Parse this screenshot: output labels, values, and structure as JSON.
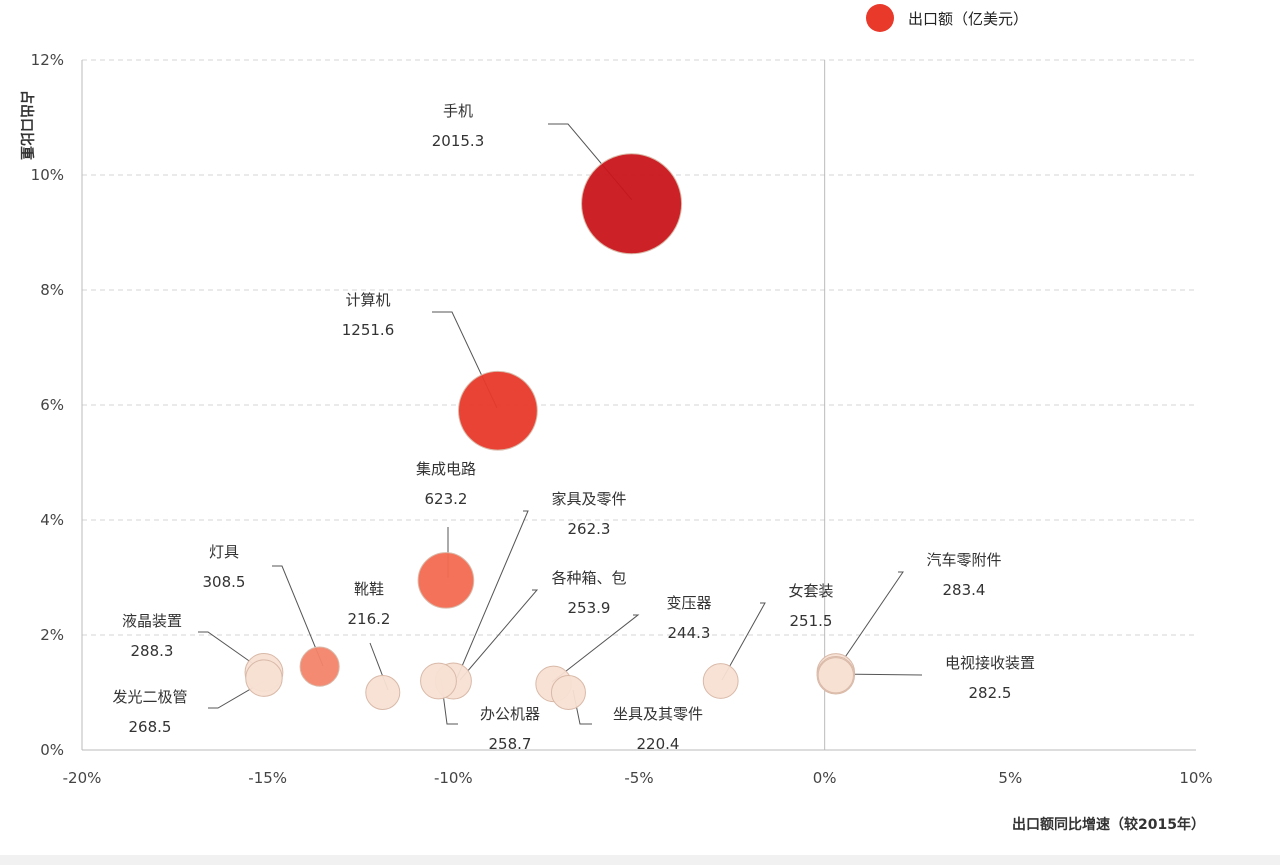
{
  "chart_data": {
    "type": "bubble",
    "legend": {
      "label": "出口额（亿美元）",
      "color": "#e8392b",
      "placement": "top-right"
    },
    "xlabel": "出口额同比增速（较2015年）",
    "ylabel": "占出口比重",
    "xlim": [
      -20,
      10
    ],
    "ylim": [
      0,
      12
    ],
    "xticks": [
      "-20%",
      "-15%",
      "-10%",
      "-5%",
      "0%",
      "5%",
      "10%"
    ],
    "yticks": [
      "0%",
      "2%",
      "4%",
      "6%",
      "8%",
      "10%",
      "12%"
    ],
    "points": [
      {
        "name": "手机",
        "value": "2015.3",
        "size": 2015.3,
        "x": -5.2,
        "y": 9.5,
        "color": "#c9161b"
      },
      {
        "name": "计算机",
        "value": "1251.6",
        "size": 1251.6,
        "x": -8.8,
        "y": 5.9,
        "color": "#e8392b"
      },
      {
        "name": "集成电路",
        "value": "623.2",
        "size": 623.2,
        "x": -10.2,
        "y": 2.95,
        "color": "#f36a50"
      },
      {
        "name": "灯具",
        "value": "308.5",
        "size": 308.5,
        "x": -13.6,
        "y": 1.45,
        "color": "#f4846a"
      },
      {
        "name": "液晶装置",
        "value": "288.3",
        "size": 288.3,
        "x": -15.1,
        "y": 1.35,
        "color": "#f7e0d3"
      },
      {
        "name": "发光二极管",
        "value": "268.5",
        "size": 268.5,
        "x": -15.1,
        "y": 1.25,
        "color": "#f7e0d3"
      },
      {
        "name": "靴鞋",
        "value": "216.2",
        "size": 216.2,
        "x": -11.9,
        "y": 1.0,
        "color": "#f7e0d3"
      },
      {
        "name": "办公机器",
        "value": "258.7",
        "size": 258.7,
        "x": -10.4,
        "y": 1.2,
        "color": "#f7e0d3"
      },
      {
        "name": "家具及零件",
        "value": "262.3",
        "size": 262.3,
        "x": -10.0,
        "y": 1.2,
        "color": "#f7e0d3"
      },
      {
        "name": "各种箱、包",
        "value": "253.9",
        "size": 253.9,
        "x": -7.3,
        "y": 1.15,
        "color": "#f7e0d3"
      },
      {
        "name": "坐具及其零件",
        "value": "220.4",
        "size": 220.4,
        "x": -6.9,
        "y": 1.0,
        "color": "#f7e0d3"
      },
      {
        "name": "变压器",
        "value": "244.3",
        "size": 244.3,
        "x": -2.8,
        "y": 1.2,
        "color": "#f7e0d3"
      },
      {
        "name": "女套装",
        "value": "251.5",
        "size": 251.5,
        "x": 0.3,
        "y": 1.3,
        "color": "#f7e0d3"
      },
      {
        "name": "汽车零附件",
        "value": "283.4",
        "size": 283.4,
        "x": 0.3,
        "y": 1.35,
        "color": "#f7e0d3"
      },
      {
        "name": "电视接收装置",
        "value": "282.5",
        "size": 282.5,
        "x": 0.3,
        "y": 1.3,
        "color": "#f7e0d3"
      }
    ]
  }
}
